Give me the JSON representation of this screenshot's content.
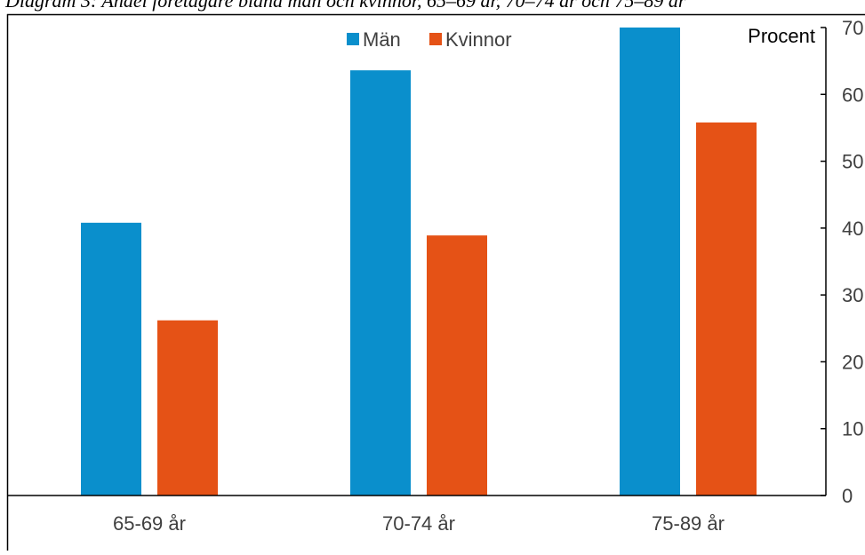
{
  "chart_data": {
    "type": "bar",
    "title": "Diagram 3: Andel företagare bland män och kvinnor, 65–69 år, 70–74 år och 75–89 år",
    "categories": [
      "65-69 år",
      "70-74 år",
      "75-89 år"
    ],
    "series": [
      {
        "name": "Män",
        "values": [
          40.8,
          63.6,
          70.0
        ]
      },
      {
        "name": "Kvinnor",
        "values": [
          26.2,
          38.9,
          55.8
        ]
      }
    ],
    "ylabel": "Procent",
    "ylim": [
      0,
      70
    ],
    "yticks": [
      0,
      10,
      20,
      30,
      40,
      50,
      60,
      70
    ],
    "y_axis_side": "right",
    "grid": false,
    "legend_position": "top-center",
    "colors": {
      "Män": "#0A8FCC",
      "Kvinnor": "#E55216",
      "axis": "#000000",
      "frame": "#000000"
    }
  }
}
